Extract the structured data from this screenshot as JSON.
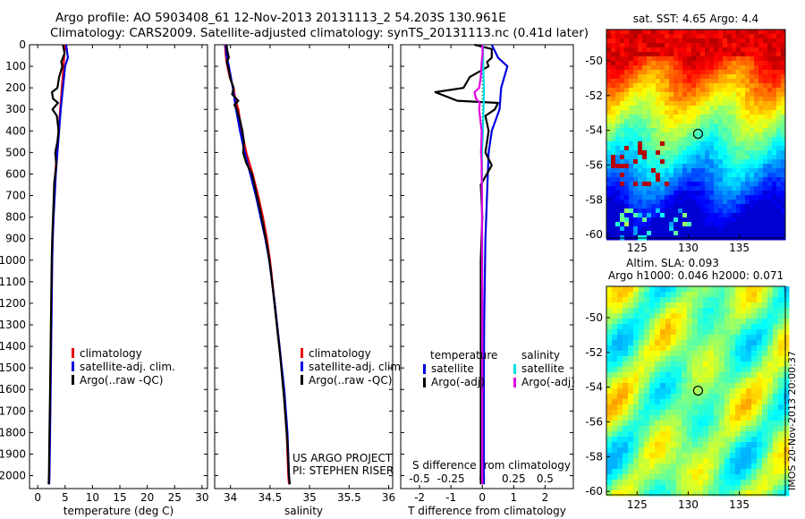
{
  "header": {
    "line1": "Argo profile: AO 5903408_61 12-Nov-2013 20131113_2 54.203S 130.961E",
    "line2": "Climatology: CARS2009. Satellite-adjusted climatology: synTS_20131113.nc (0.41d later)"
  },
  "colors": {
    "clim": "#e8000b",
    "sat": "#0000e0",
    "argo": "#000000",
    "sat_s": "#00e0e0",
    "argo_s": "#e000e0"
  },
  "depth_ticks": [
    0,
    100,
    200,
    300,
    400,
    500,
    600,
    700,
    800,
    900,
    1000,
    1100,
    1200,
    1300,
    1400,
    1500,
    1600,
    1700,
    1800,
    1900,
    2000
  ],
  "chart_data": [
    {
      "type": "line",
      "xlabel": "temperature (deg C)",
      "xticks": [
        0,
        5,
        10,
        15,
        20,
        25,
        30
      ],
      "xlim": [
        -1.5,
        31
      ],
      "ylim": [
        0,
        2060
      ],
      "legend": [
        "climatology",
        "satellite-adj. clim.",
        "Argo(..raw -QC)"
      ],
      "series": [
        {
          "name": "climatology",
          "color": "clim",
          "points": [
            [
              5.0,
              0
            ],
            [
              4.7,
              100
            ],
            [
              4.4,
              200
            ],
            [
              4.1,
              300
            ],
            [
              3.8,
              400
            ],
            [
              3.5,
              500
            ],
            [
              3.2,
              600
            ],
            [
              3.0,
              700
            ],
            [
              2.85,
              800
            ],
            [
              2.7,
              900
            ],
            [
              2.6,
              1000
            ],
            [
              2.5,
              1200
            ],
            [
              2.4,
              1400
            ],
            [
              2.3,
              1600
            ],
            [
              2.2,
              1800
            ],
            [
              2.1,
              2000
            ],
            [
              2.05,
              2040
            ]
          ]
        },
        {
          "name": "satellite-adj. clim.",
          "color": "sat",
          "points": [
            [
              5.2,
              0
            ],
            [
              5.5,
              60
            ],
            [
              5.0,
              100
            ],
            [
              4.6,
              200
            ],
            [
              4.2,
              300
            ],
            [
              3.9,
              400
            ],
            [
              3.6,
              500
            ],
            [
              3.3,
              600
            ],
            [
              3.1,
              700
            ],
            [
              2.9,
              800
            ],
            [
              2.75,
              900
            ],
            [
              2.65,
              1000
            ],
            [
              2.55,
              1200
            ],
            [
              2.45,
              1400
            ],
            [
              2.35,
              1600
            ],
            [
              2.25,
              1800
            ],
            [
              2.15,
              2000
            ],
            [
              2.1,
              2040
            ]
          ]
        },
        {
          "name": "Argo(..raw -QC)",
          "color": "argo",
          "points": [
            [
              4.6,
              0
            ],
            [
              4.9,
              40
            ],
            [
              4.3,
              80
            ],
            [
              4.5,
              100
            ],
            [
              3.9,
              150
            ],
            [
              3.6,
              200
            ],
            [
              2.6,
              220
            ],
            [
              2.8,
              250
            ],
            [
              3.7,
              270
            ],
            [
              2.7,
              300
            ],
            [
              3.5,
              330
            ],
            [
              3.8,
              400
            ],
            [
              3.6,
              450
            ],
            [
              3.2,
              500
            ],
            [
              3.4,
              560
            ],
            [
              3.0,
              640
            ],
            [
              2.95,
              700
            ],
            [
              2.8,
              800
            ],
            [
              2.65,
              900
            ],
            [
              2.55,
              1000
            ],
            [
              2.45,
              1200
            ],
            [
              2.35,
              1400
            ],
            [
              2.25,
              1600
            ],
            [
              2.15,
              1800
            ],
            [
              2.05,
              2000
            ],
            [
              2.0,
              2040
            ]
          ]
        }
      ]
    },
    {
      "type": "line",
      "xlabel": "salinity",
      "xticks": [
        34,
        34.5,
        35,
        35.5,
        36
      ],
      "xtick_labels": [
        "34",
        "34.5",
        "35",
        "35.5",
        "36"
      ],
      "xlim": [
        33.8,
        36.05
      ],
      "ylim": [
        0,
        2060
      ],
      "legend": [
        "climatology",
        "satellite-adj. clim.",
        "Argo(..raw -QC)"
      ],
      "annotations": [
        "US ARGO PROJECT",
        "PI: STEPHEN RISER"
      ],
      "series": [
        {
          "name": "climatology",
          "color": "clim",
          "points": [
            [
              33.93,
              0
            ],
            [
              33.94,
              50
            ],
            [
              33.96,
              100
            ],
            [
              33.99,
              150
            ],
            [
              34.04,
              200
            ],
            [
              34.06,
              250
            ],
            [
              34.1,
              300
            ],
            [
              34.14,
              400
            ],
            [
              34.2,
              500
            ],
            [
              34.28,
              600
            ],
            [
              34.35,
              700
            ],
            [
              34.41,
              800
            ],
            [
              34.46,
              900
            ],
            [
              34.5,
              1000
            ],
            [
              34.56,
              1200
            ],
            [
              34.62,
              1400
            ],
            [
              34.67,
              1600
            ],
            [
              34.71,
              1800
            ],
            [
              34.73,
              2000
            ],
            [
              34.74,
              2040
            ]
          ]
        },
        {
          "name": "satellite-adj. clim.",
          "color": "sat",
          "points": [
            [
              33.94,
              0
            ],
            [
              33.95,
              50
            ],
            [
              33.98,
              100
            ],
            [
              34.03,
              200
            ],
            [
              34.07,
              300
            ],
            [
              34.12,
              400
            ],
            [
              34.18,
              500
            ],
            [
              34.25,
              600
            ],
            [
              34.32,
              700
            ],
            [
              34.38,
              800
            ],
            [
              34.44,
              900
            ],
            [
              34.49,
              1000
            ],
            [
              34.56,
              1200
            ],
            [
              34.62,
              1400
            ],
            [
              34.68,
              1600
            ],
            [
              34.72,
              1800
            ],
            [
              34.74,
              2000
            ],
            [
              34.75,
              2040
            ]
          ]
        },
        {
          "name": "Argo(..raw -QC)",
          "color": "argo",
          "points": [
            [
              33.95,
              0
            ],
            [
              33.96,
              30
            ],
            [
              33.98,
              60
            ],
            [
              33.95,
              80
            ],
            [
              33.97,
              100
            ],
            [
              34.0,
              160
            ],
            [
              34.04,
              200
            ],
            [
              34.02,
              230
            ],
            [
              34.1,
              260
            ],
            [
              34.05,
              280
            ],
            [
              34.08,
              300
            ],
            [
              34.12,
              350
            ],
            [
              34.15,
              400
            ],
            [
              34.17,
              450
            ],
            [
              34.16,
              500
            ],
            [
              34.2,
              550
            ],
            [
              34.27,
              600
            ],
            [
              34.32,
              680
            ],
            [
              34.37,
              760
            ],
            [
              34.42,
              850
            ],
            [
              34.47,
              950
            ],
            [
              34.51,
              1050
            ],
            [
              34.57,
              1250
            ],
            [
              34.63,
              1450
            ],
            [
              34.68,
              1650
            ],
            [
              34.72,
              1850
            ],
            [
              34.74,
              2000
            ],
            [
              34.75,
              2040
            ]
          ]
        }
      ]
    },
    {
      "type": "line",
      "xlabel": "T difference from climatology",
      "xlabel_top": "S difference from climatology",
      "xticks": [
        -2,
        -1,
        0,
        1,
        2
      ],
      "xlim": [
        -2.6,
        2.9
      ],
      "top_ticks": [
        -0.5,
        -0.25,
        0,
        0.25,
        0.5
      ],
      "top_tick_labels": [
        "-0.5",
        "-0.25",
        "0",
        "0.25",
        "0.5"
      ],
      "top_tick_scale": 4,
      "ylim": [
        0,
        2060
      ],
      "legend": {
        "temperature": "temperature",
        "salinity": "salinity",
        "sat": "satellite",
        "argo": "Argo(-adj)"
      },
      "series": [
        {
          "name": "temperature satellite",
          "color": "sat",
          "points": [
            [
              0.3,
              0
            ],
            [
              0.5,
              60
            ],
            [
              0.8,
              100
            ],
            [
              0.6,
              200
            ],
            [
              0.55,
              300
            ],
            [
              0.3,
              400
            ],
            [
              0.2,
              500
            ],
            [
              0.15,
              700
            ],
            [
              0.1,
              900
            ],
            [
              0.08,
              1100
            ],
            [
              0.06,
              1300
            ],
            [
              0.05,
              1500
            ],
            [
              0.05,
              1700
            ],
            [
              0.05,
              1900
            ],
            [
              0.05,
              2040
            ]
          ]
        },
        {
          "name": "temperature Argo(-adj)",
          "color": "argo",
          "points": [
            [
              -0.25,
              0
            ],
            [
              0.3,
              20
            ],
            [
              0.3,
              60
            ],
            [
              0.15,
              80
            ],
            [
              0.2,
              100
            ],
            [
              -0.4,
              150
            ],
            [
              -0.6,
              200
            ],
            [
              -1.5,
              220
            ],
            [
              -0.8,
              260
            ],
            [
              0.5,
              270
            ],
            [
              0.4,
              300
            ],
            [
              0.1,
              330
            ],
            [
              0.2,
              400
            ],
            [
              0.15,
              450
            ],
            [
              0.1,
              500
            ],
            [
              0.3,
              560
            ],
            [
              -0.05,
              650
            ],
            [
              0.0,
              800
            ],
            [
              -0.05,
              1000
            ],
            [
              -0.05,
              1200
            ],
            [
              -0.05,
              1400
            ],
            [
              -0.05,
              1600
            ],
            [
              -0.05,
              1800
            ],
            [
              -0.05,
              2000
            ],
            [
              -0.05,
              2040
            ]
          ]
        },
        {
          "name": "salinity satellite",
          "color": "sat_s",
          "points": [
            [
              0.02,
              0
            ],
            [
              0.03,
              100
            ],
            [
              0.05,
              200
            ],
            [
              0.04,
              300
            ],
            [
              0.02,
              400
            ],
            [
              -0.01,
              500
            ],
            [
              -0.01,
              700
            ],
            [
              -0.005,
              900
            ],
            [
              -0.005,
              1100
            ],
            [
              0.0,
              1300
            ],
            [
              0.0,
              1500
            ],
            [
              0.0,
              1700
            ],
            [
              0.0,
              1900
            ],
            [
              0.0,
              2040
            ]
          ]
        },
        {
          "name": "salinity Argo(-adj)",
          "color": "argo_s",
          "points": [
            [
              0.0,
              0
            ],
            [
              0.01,
              40
            ],
            [
              -0.02,
              80
            ],
            [
              -0.03,
              100
            ],
            [
              -0.05,
              150
            ],
            [
              -0.1,
              200
            ],
            [
              -0.25,
              220
            ],
            [
              -0.2,
              250
            ],
            [
              -0.08,
              270
            ],
            [
              -0.1,
              300
            ],
            [
              -0.02,
              400
            ],
            [
              -0.03,
              450
            ],
            [
              -0.04,
              500
            ],
            [
              -0.02,
              550
            ],
            [
              -0.02,
              600
            ],
            [
              -0.01,
              700
            ],
            [
              -0.01,
              900
            ],
            [
              -0.005,
              1100
            ],
            [
              0.0,
              1300
            ],
            [
              0.0,
              1500
            ],
            [
              0.0,
              1700
            ],
            [
              0.0,
              1900
            ],
            [
              0.0,
              2040
            ]
          ]
        }
      ]
    },
    {
      "type": "heatmap",
      "title": "sat. SST: 4.65 Argo: 4.4",
      "xticks": [
        125,
        130,
        135
      ],
      "yticks": [
        -50,
        -52,
        -54,
        -56,
        -58,
        -60
      ],
      "xlim": [
        122,
        139.5
      ],
      "ylim": [
        -60.2,
        -48.2
      ],
      "marker": [
        130.961,
        -54.203
      ]
    },
    {
      "type": "heatmap",
      "title": "Altim. SLA: 0.093",
      "subtitle": "Argo h1000: 0.046 h2000: 0.071",
      "xticks": [
        125,
        130,
        135
      ],
      "yticks": [
        -50,
        -52,
        -54,
        -56,
        -58,
        -60
      ],
      "xlim": [
        122,
        139.5
      ],
      "ylim": [
        -60.2,
        -48.2
      ],
      "marker": [
        130.961,
        -54.203
      ]
    }
  ],
  "side_label": "IMOS 20-Nov-2013 20:00:37"
}
